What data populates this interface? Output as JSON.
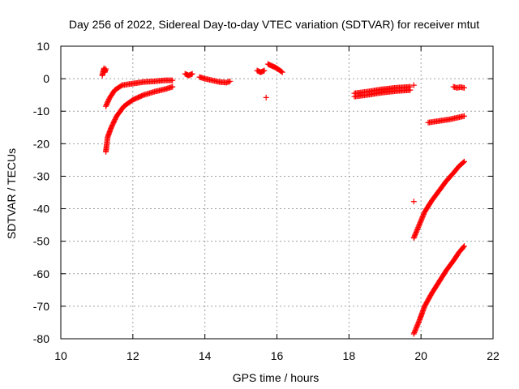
{
  "chart_data": {
    "type": "scatter",
    "title": "Day 256 of 2022, Sidereal Day-to-day VTEC variation (SDTVAR) for receiver mtut",
    "xlabel": "GPS time / hours",
    "ylabel": "SDTVAR / TECUs",
    "xlim": [
      10,
      22
    ],
    "ylim": [
      -80,
      10
    ],
    "xticks": [
      10,
      12,
      14,
      16,
      18,
      20,
      22
    ],
    "yticks": [
      10,
      0,
      -10,
      -20,
      -30,
      -40,
      -50,
      -60,
      -70,
      -80
    ],
    "grid": true,
    "legend": "none",
    "marker": "plus",
    "color": "#ff0000",
    "series": [
      {
        "x": [
          11.15,
          11.18,
          11.2,
          11.22,
          11.25
        ],
        "y": [
          1.0,
          2.5,
          3.2,
          2.0,
          3.0
        ]
      },
      {
        "x": [
          11.25,
          11.35,
          11.5,
          11.7,
          12.0,
          12.3,
          12.6,
          12.9,
          13.1
        ],
        "y": [
          -8.5,
          -6.0,
          -3.5,
          -2.0,
          -1.5,
          -1.0,
          -0.8,
          -0.5,
          -0.5
        ]
      },
      {
        "x": [
          11.25,
          11.3,
          11.4,
          11.55,
          11.75,
          12.0,
          12.3,
          12.6,
          12.9,
          13.1
        ],
        "y": [
          -22.5,
          -18.0,
          -15.0,
          -11.5,
          -8.5,
          -6.5,
          -5.0,
          -4.0,
          -3.2,
          -2.5
        ]
      },
      {
        "x": [
          13.45,
          13.55,
          13.65
        ],
        "y": [
          1.5,
          1.0,
          1.5
        ]
      },
      {
        "x": [
          13.85,
          14.0,
          14.2,
          14.4,
          14.6,
          14.7
        ],
        "y": [
          0.5,
          0.0,
          -0.5,
          -1.0,
          -1.2,
          -0.8
        ]
      },
      {
        "x": [
          15.45,
          15.55,
          15.65
        ],
        "y": [
          2.5,
          2.0,
          2.5
        ]
      },
      {
        "x": [
          15.7
        ],
        "y": [
          -5.8
        ]
      },
      {
        "x": [
          15.75,
          15.85,
          15.95,
          16.05,
          16.15
        ],
        "y": [
          4.5,
          4.0,
          3.5,
          2.8,
          2.0
        ]
      },
      {
        "x": [
          18.15,
          18.5,
          18.9,
          19.3,
          19.7
        ],
        "y": [
          -5.5,
          -5.0,
          -4.3,
          -3.8,
          -3.5
        ]
      },
      {
        "x": [
          18.15,
          18.5,
          18.9,
          19.3,
          19.7
        ],
        "y": [
          -4.5,
          -4.0,
          -3.3,
          -2.8,
          -2.5
        ]
      },
      {
        "x": [
          19.8
        ],
        "y": [
          -2.0
        ]
      },
      {
        "x": [
          20.9,
          21.0,
          21.1,
          21.2
        ],
        "y": [
          -2.5,
          -2.8,
          -2.6,
          -2.8
        ]
      },
      {
        "x": [
          20.2,
          20.5,
          20.8,
          21.0,
          21.2
        ],
        "y": [
          -13.5,
          -13.0,
          -12.5,
          -12.0,
          -11.5
        ]
      },
      {
        "x": [
          19.8
        ],
        "y": [
          -37.8
        ]
      },
      {
        "x": [
          19.8,
          19.95,
          20.1,
          20.3,
          20.5,
          20.7,
          20.9,
          21.05,
          21.2
        ],
        "y": [
          -49.0,
          -45.0,
          -41.0,
          -37.5,
          -34.5,
          -31.5,
          -29.0,
          -27.0,
          -25.5
        ]
      },
      {
        "x": [
          19.8,
          19.95,
          20.1,
          20.3,
          20.5,
          20.7,
          20.9,
          21.05,
          21.2
        ],
        "y": [
          -78.5,
          -74.5,
          -70.0,
          -66.0,
          -62.5,
          -59.0,
          -56.0,
          -53.5,
          -51.5
        ]
      }
    ]
  }
}
